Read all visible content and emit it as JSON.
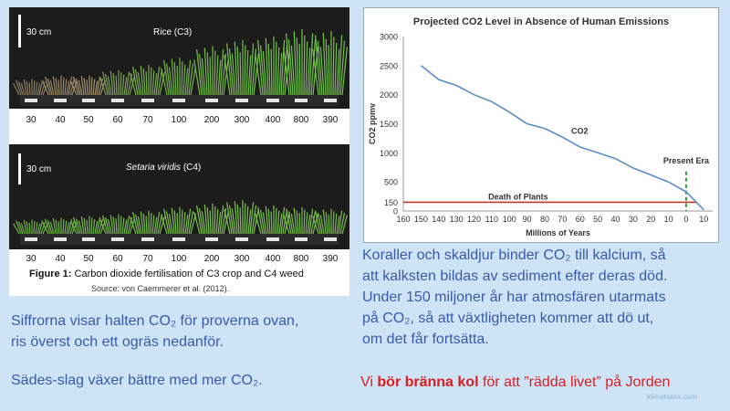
{
  "photo_figure": {
    "top_panel": {
      "scale": "30 cm",
      "title": "Rice (C3)",
      "concentrations": [
        "30",
        "40",
        "50",
        "60",
        "70",
        "100",
        "200",
        "300",
        "400",
        "800",
        "390"
      ]
    },
    "bottom_panel": {
      "scale": "30 cm",
      "title_species": "Setaria viridis",
      "title_type": "(C4)",
      "concentrations": [
        "30",
        "40",
        "50",
        "60",
        "70",
        "100",
        "200",
        "300",
        "400",
        "800",
        "390"
      ]
    },
    "caption_bold": "Figure 1:",
    "caption_rest": " Carbon dioxide fertilisation of C3 crop and C4 weed",
    "source": "Source: von Caemmerer et al. (2012)."
  },
  "chart_data": {
    "type": "line",
    "title": "Projected CO2 Level in Absence of Human Emissions",
    "xlabel": "Millions of Years",
    "ylabel": "CO2 ppmv",
    "x_ticks": [
      160,
      150,
      140,
      130,
      120,
      110,
      100,
      90,
      80,
      70,
      60,
      50,
      40,
      30,
      20,
      10,
      0,
      -10
    ],
    "x_tick_labels": [
      "160",
      "150",
      "140",
      "130",
      "120",
      "110",
      "100",
      "90",
      "80",
      "70",
      "60",
      "50",
      "40",
      "30",
      "20",
      "10",
      "0",
      "10"
    ],
    "y_ticks": [
      0,
      150,
      500,
      1000,
      1500,
      2000,
      2500,
      3000
    ],
    "xlim": [
      160,
      -15
    ],
    "ylim": [
      0,
      3000
    ],
    "series": [
      {
        "name": "CO2",
        "color": "#5b8cc6",
        "x": [
          150,
          140,
          130,
          120,
          110,
          100,
          90,
          80,
          70,
          60,
          50,
          40,
          30,
          20,
          10,
          0,
          -10
        ],
        "y": [
          2500,
          2260,
          2160,
          2000,
          1880,
          1700,
          1500,
          1420,
          1270,
          1100,
          1000,
          900,
          740,
          620,
          500,
          330,
          20
        ]
      }
    ],
    "threshold": {
      "label": "Death of Plants",
      "y": 150,
      "color": "#b83a2a"
    },
    "present_era": {
      "label": "Present Era",
      "x": 0,
      "color": "#2e9e3a"
    }
  },
  "texts": {
    "right_paragraph": [
      "Koraller och skaldjur binder CO₂ till kalcium, så",
      "att kalksten bildas av sediment efter deras död.",
      "Under 150 miljoner år har atmosfären utarmats",
      "på CO₂, så att växtligheten kommer att dö ut,",
      "om det får fortsätta."
    ],
    "left_paragraph": [
      "Siffrorna visar halten CO₂ för proverna ovan,",
      "ris överst och ett ogräs nedanför."
    ],
    "left_footer": "Sädes-slag växer bättre med mer CO₂.",
    "bottom_prefix": "Vi ",
    "bottom_bold": "bör bränna kol",
    "bottom_suffix": " för att ”rädda livet” på Jorden",
    "watermark": "klimatsans.com"
  },
  "colors": {
    "background": "#cfe3f7",
    "swedish_text": "#3a5aa8",
    "bottom_text": "#d81e1e",
    "plant_green": "#7cc04a"
  }
}
